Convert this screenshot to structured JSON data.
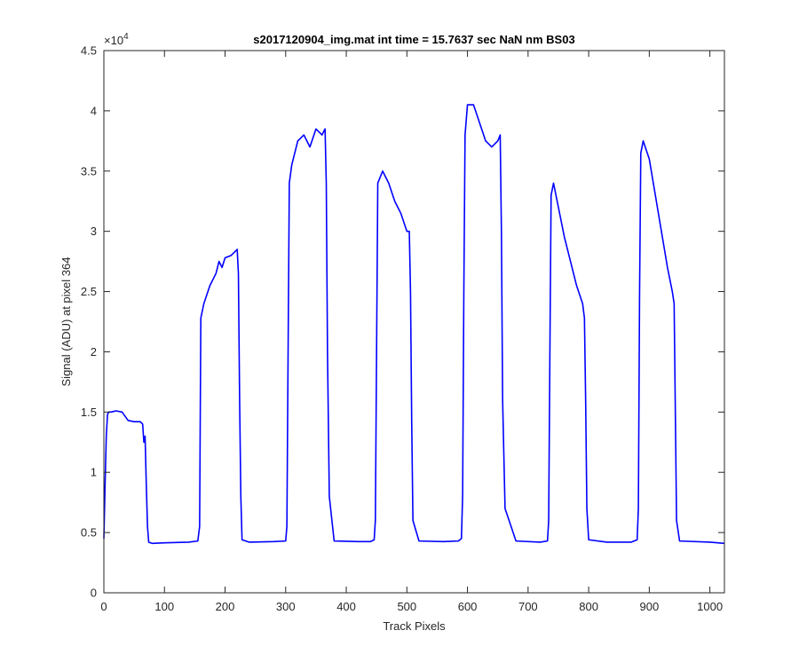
{
  "chart_data": {
    "type": "line",
    "title": "s2017120904_img.mat int time = 15.7637 sec  NaN nm BS03",
    "xlabel": "Track Pixels",
    "ylabel": "Signal (ADU) at pixel 364",
    "xlim": [
      0,
      1024
    ],
    "ylim": [
      0,
      45000
    ],
    "xticks": [
      0,
      100,
      200,
      300,
      400,
      500,
      600,
      700,
      800,
      900,
      1000
    ],
    "xtick_labels": [
      "0",
      "100",
      "200",
      "300",
      "400",
      "500",
      "600",
      "700",
      "800",
      "900",
      "1000"
    ],
    "yticks": [
      0,
      5000,
      10000,
      15000,
      20000,
      25000,
      30000,
      35000,
      40000,
      45000
    ],
    "ytick_labels": [
      "0",
      "0.5",
      "1",
      "1.5",
      "2",
      "2.5",
      "3",
      "3.5",
      "4",
      "4.5"
    ],
    "y_exponent_base": "×10",
    "y_exponent_power": "4",
    "grid": false,
    "line_color": "#0000ff",
    "series": [
      {
        "x": [
          0,
          2,
          4,
          6,
          8,
          12,
          20,
          30,
          40,
          50,
          60,
          64,
          66,
          68,
          70,
          72,
          74,
          80,
          100,
          140,
          155,
          158,
          160,
          165,
          175,
          185,
          190,
          195,
          200,
          210,
          220,
          222,
          224,
          226,
          228,
          240,
          280,
          300,
          302,
          304,
          306,
          310,
          320,
          330,
          340,
          350,
          360,
          365,
          367,
          369,
          372,
          380,
          420,
          440,
          446,
          448,
          450,
          452,
          460,
          470,
          480,
          490,
          500,
          504,
          506,
          508,
          510,
          520,
          560,
          585,
          590,
          592,
          594,
          596,
          600,
          610,
          620,
          630,
          640,
          650,
          654,
          656,
          658,
          662,
          680,
          720,
          732,
          734,
          736,
          738,
          742,
          750,
          760,
          770,
          780,
          790,
          793,
          795,
          797,
          800,
          830,
          870,
          880,
          882,
          884,
          886,
          890,
          900,
          910,
          920,
          930,
          938,
          941,
          943,
          945,
          950,
          1000,
          1024
        ],
        "y": [
          4500,
          9000,
          13000,
          14800,
          15000,
          15000,
          15100,
          15000,
          14300,
          14200,
          14200,
          14000,
          12500,
          13000,
          9000,
          5500,
          4200,
          4100,
          4150,
          4200,
          4300,
          5500,
          22800,
          24000,
          25500,
          26500,
          27500,
          27000,
          27800,
          28000,
          28500,
          26500,
          16000,
          8000,
          4400,
          4200,
          4250,
          4300,
          5500,
          20000,
          34000,
          35500,
          37500,
          38000,
          37000,
          38500,
          38000,
          38500,
          34000,
          20000,
          8000,
          4300,
          4250,
          4250,
          4400,
          6000,
          20000,
          34000,
          35000,
          34000,
          32500,
          31500,
          30000,
          30000,
          25000,
          14000,
          6000,
          4300,
          4250,
          4300,
          4500,
          8000,
          25000,
          38000,
          40500,
          40500,
          39000,
          37500,
          37000,
          37500,
          38000,
          30000,
          16000,
          7000,
          4300,
          4200,
          4300,
          6000,
          20000,
          33000,
          34000,
          32000,
          29500,
          27500,
          25500,
          24000,
          22800,
          16000,
          7000,
          4400,
          4200,
          4200,
          4400,
          7000,
          25000,
          36500,
          37500,
          36000,
          33000,
          30000,
          27000,
          25000,
          24000,
          15000,
          6000,
          4300,
          4200,
          4100
        ]
      }
    ]
  }
}
